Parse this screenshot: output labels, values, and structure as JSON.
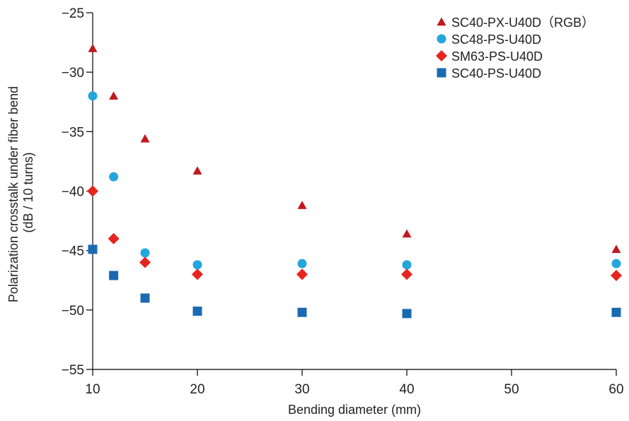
{
  "chart_data": {
    "type": "scatter",
    "xlabel": "Bending diameter (mm)",
    "ylabel_lines": [
      "Polarization crosstalk under fiber bend",
      "(dB / 10 turns)"
    ],
    "xlim": [
      10,
      60
    ],
    "ylim": [
      -55,
      -25
    ],
    "x_ticks": [
      10,
      20,
      30,
      40,
      50,
      60
    ],
    "y_ticks": [
      -25,
      -30,
      -35,
      -40,
      -45,
      -50,
      -55
    ],
    "x_tick_labels": [
      "10",
      "20",
      "30",
      "40",
      "50",
      "60"
    ],
    "y_tick_labels": [
      "−25",
      "−30",
      "−35",
      "−40",
      "−45",
      "−50",
      "−55"
    ],
    "grid": false,
    "legend_position": "top-right",
    "series": [
      {
        "name": "SC40-PX-U40D（RGB）",
        "marker": "triangle",
        "color": "#c0191f",
        "points": [
          [
            10,
            -28.0
          ],
          [
            12,
            -32.0
          ],
          [
            15,
            -35.6
          ],
          [
            20,
            -38.3
          ],
          [
            30,
            -41.2
          ],
          [
            40,
            -43.6
          ],
          [
            60,
            -44.9
          ]
        ]
      },
      {
        "name": "SC48-PS-U40D",
        "marker": "circle",
        "color": "#23a6dc",
        "points": [
          [
            10,
            -32.0
          ],
          [
            12,
            -38.8
          ],
          [
            15,
            -45.2
          ],
          [
            20,
            -46.2
          ],
          [
            30,
            -46.1
          ],
          [
            40,
            -46.2
          ],
          [
            60,
            -46.1
          ]
        ]
      },
      {
        "name": "SM63-PS-U40D",
        "marker": "diamond",
        "color": "#e6251f",
        "points": [
          [
            10,
            -40.0
          ],
          [
            12,
            -44.0
          ],
          [
            15,
            -46.0
          ],
          [
            20,
            -47.0
          ],
          [
            30,
            -47.0
          ],
          [
            40,
            -47.0
          ],
          [
            60,
            -47.1
          ]
        ]
      },
      {
        "name": "SC40-PS-U40D",
        "marker": "square",
        "color": "#1a6ab3",
        "points": [
          [
            10,
            -44.9
          ],
          [
            12,
            -47.1
          ],
          [
            15,
            -49.0
          ],
          [
            20,
            -50.1
          ],
          [
            30,
            -50.2
          ],
          [
            40,
            -50.3
          ],
          [
            60,
            -50.2
          ]
        ]
      }
    ]
  }
}
